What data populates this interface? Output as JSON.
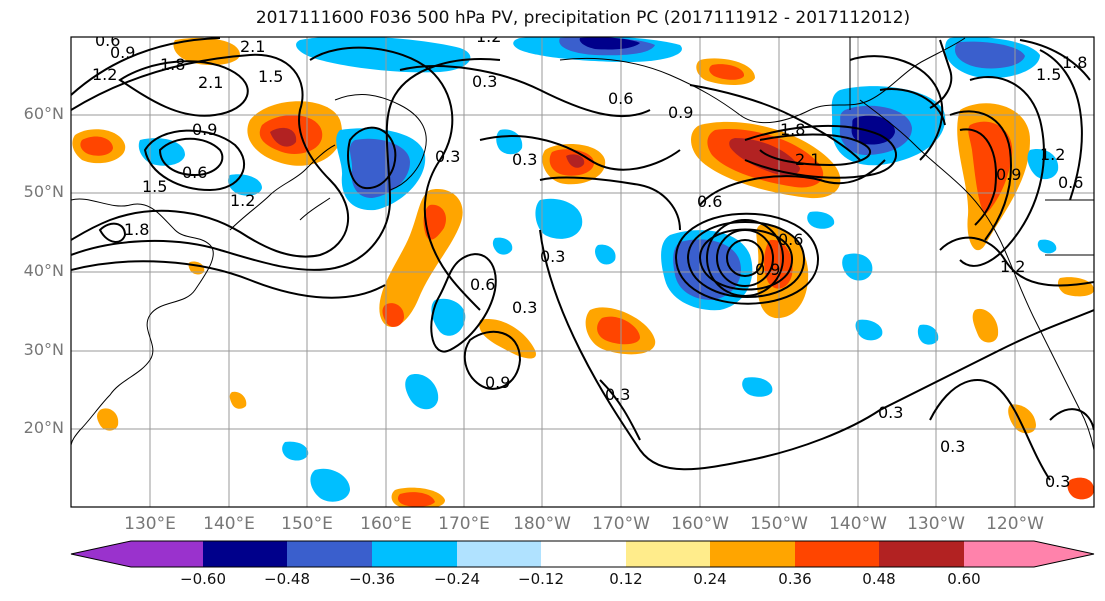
{
  "title": "2017111600 F036 500 hPa PV, precipitation PC (2017111912 - 2017112012)",
  "lat_labels": [
    "60°N",
    "50°N",
    "40°N",
    "30°N",
    "20°N"
  ],
  "lon_labels": [
    "130°E",
    "140°E",
    "150°E",
    "160°E",
    "170°E",
    "180°W",
    "170°W",
    "160°W",
    "150°W",
    "140°W",
    "130°W",
    "120°W"
  ],
  "colorbar": {
    "colors": [
      "#9a32cd",
      "#00008b",
      "#3a5fcd",
      "#00bfff",
      "#b0e2ff",
      "#ffffff",
      "#ffec8b",
      "#ffa500",
      "#ff4500",
      "#b22222",
      "#ff82ab"
    ],
    "tick_labels": [
      "−0.60",
      "−0.48",
      "−0.36",
      "−0.24",
      "−0.12",
      "0.12",
      "0.24",
      "0.36",
      "0.48",
      "0.60"
    ]
  },
  "contour_labels": [
    "0.3",
    "0.6",
    "0.9",
    "1.2",
    "1.5",
    "1.8",
    "2.1"
  ]
}
